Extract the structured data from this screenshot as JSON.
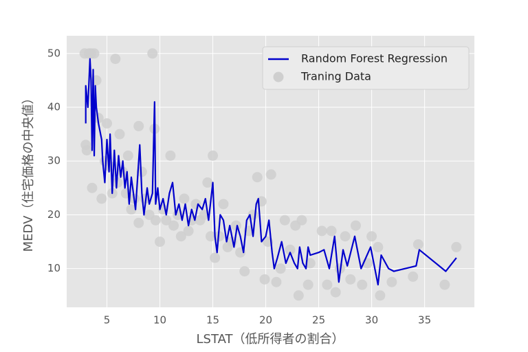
{
  "chart_data": {
    "type": "line",
    "x_label": "LSTAT（低所得者の割合）",
    "y_label": "MEDV（住宅価格の中央値）",
    "xlim": [
      1.2,
      39.7
    ],
    "ylim": [
      2.8,
      53.3
    ],
    "xticks": [
      5,
      10,
      15,
      20,
      25,
      30,
      35
    ],
    "yticks": [
      10,
      20,
      30,
      40,
      50
    ],
    "grid": true,
    "legend": "upper right",
    "series": [
      {
        "name": "Random Forest Regression",
        "type": "line",
        "color": "#0000cc",
        "x": [
          3.0,
          3.0,
          3.2,
          3.4,
          3.5,
          3.6,
          3.7,
          3.8,
          3.9,
          4.0,
          4.2,
          4.5,
          4.6,
          4.8,
          5.0,
          5.2,
          5.3,
          5.5,
          5.7,
          5.9,
          6.1,
          6.3,
          6.5,
          6.7,
          6.9,
          7.1,
          7.3,
          7.5,
          7.7,
          7.9,
          8.1,
          8.3,
          8.5,
          8.8,
          9.0,
          9.3,
          9.5,
          9.6,
          9.8,
          10.0,
          10.3,
          10.6,
          10.9,
          11.2,
          11.5,
          11.8,
          12.1,
          12.4,
          12.7,
          13.0,
          13.3,
          13.6,
          14.0,
          14.3,
          14.6,
          15.0,
          15.2,
          15.4,
          15.7,
          16.0,
          16.3,
          16.6,
          17.0,
          17.3,
          17.6,
          17.9,
          18.2,
          18.5,
          18.8,
          19.1,
          19.3,
          19.6,
          20.0,
          20.3,
          20.6,
          20.8,
          21.1,
          21.5,
          21.9,
          22.3,
          22.7,
          23.0,
          23.2,
          23.5,
          23.8,
          24.0,
          24.2,
          25.0,
          25.5,
          26.0,
          26.5,
          26.9,
          27.3,
          27.7,
          28.4,
          29.0,
          29.9,
          30.3,
          30.6,
          30.9,
          31.6,
          32.1,
          34.2,
          34.5,
          37.0,
          38.0
        ],
        "values": [
          37,
          44,
          40,
          49,
          45,
          32,
          47,
          31,
          44,
          40,
          37,
          34,
          30,
          26,
          34,
          28,
          35,
          24,
          32,
          25,
          31,
          27,
          30,
          25,
          28,
          22,
          27,
          24,
          21,
          27,
          33,
          24,
          20,
          25,
          22,
          24,
          41,
          22,
          25,
          21,
          23,
          20,
          24,
          26,
          20,
          22,
          19,
          22,
          18,
          21,
          19,
          22,
          21,
          23,
          19,
          26,
          16,
          13,
          20,
          19,
          15,
          18,
          14,
          18,
          16,
          13,
          19,
          20,
          16,
          22,
          23,
          15,
          16,
          19,
          13,
          10,
          12,
          15,
          11,
          13,
          11,
          10,
          14,
          11,
          10,
          14,
          12.5,
          13,
          13.5,
          10,
          16,
          7.5,
          13.5,
          10.5,
          16,
          10,
          14,
          10,
          7,
          12.5,
          10,
          9.5,
          10.5,
          13.5,
          9.5,
          12
        ]
      },
      {
        "name": "Traning Data",
        "type": "scatter",
        "color": "#cfcfcf",
        "x": [
          2.9,
          3.0,
          3.1,
          3.3,
          3.5,
          3.6,
          3.8,
          4.0,
          4.2,
          4.5,
          4.8,
          5.0,
          5.3,
          5.5,
          5.8,
          6.0,
          6.2,
          6.5,
          6.8,
          7.0,
          7.3,
          7.6,
          8.0,
          8.0,
          8.3,
          8.6,
          9.0,
          9.3,
          9.5,
          9.6,
          10.0,
          10.3,
          10.6,
          11.0,
          11.3,
          11.7,
          12.0,
          12.3,
          12.7,
          13.0,
          13.4,
          13.8,
          14.2,
          14.5,
          14.8,
          15.0,
          15.2,
          15.6,
          16.0,
          16.4,
          16.8,
          17.2,
          17.6,
          18.0,
          18.4,
          18.8,
          19.2,
          19.6,
          19.9,
          20.2,
          20.5,
          21.0,
          21.4,
          21.8,
          22.3,
          22.8,
          23.1,
          23.4,
          24.0,
          24.2,
          25.3,
          25.8,
          26.2,
          26.6,
          27.0,
          27.5,
          28.0,
          28.5,
          29.1,
          29.6,
          30.0,
          30.6,
          30.8,
          31.9,
          33.9,
          34.4,
          36.9,
          38.0
        ],
        "values": [
          50,
          33,
          32,
          50,
          50,
          25,
          50,
          45,
          38,
          23,
          30,
          37,
          29,
          24,
          49,
          26,
          35,
          28,
          24,
          31,
          21,
          23,
          18.5,
          36.5,
          28,
          23,
          20,
          50,
          36,
          19,
          15,
          21,
          19,
          31,
          18,
          20,
          16,
          23,
          17,
          19,
          22,
          19,
          20,
          26,
          16,
          31,
          12,
          16,
          22,
          14,
          15,
          18,
          13,
          9.5,
          17,
          20,
          27,
          22.5,
          8,
          15,
          27.5,
          7.5,
          10,
          19,
          13.5,
          18,
          5,
          19,
          7,
          11,
          17,
          7,
          17,
          5.6,
          10,
          16,
          8,
          18,
          7,
          11,
          16,
          14,
          5,
          7.5,
          8.5,
          14.5,
          7,
          14
        ]
      }
    ]
  }
}
